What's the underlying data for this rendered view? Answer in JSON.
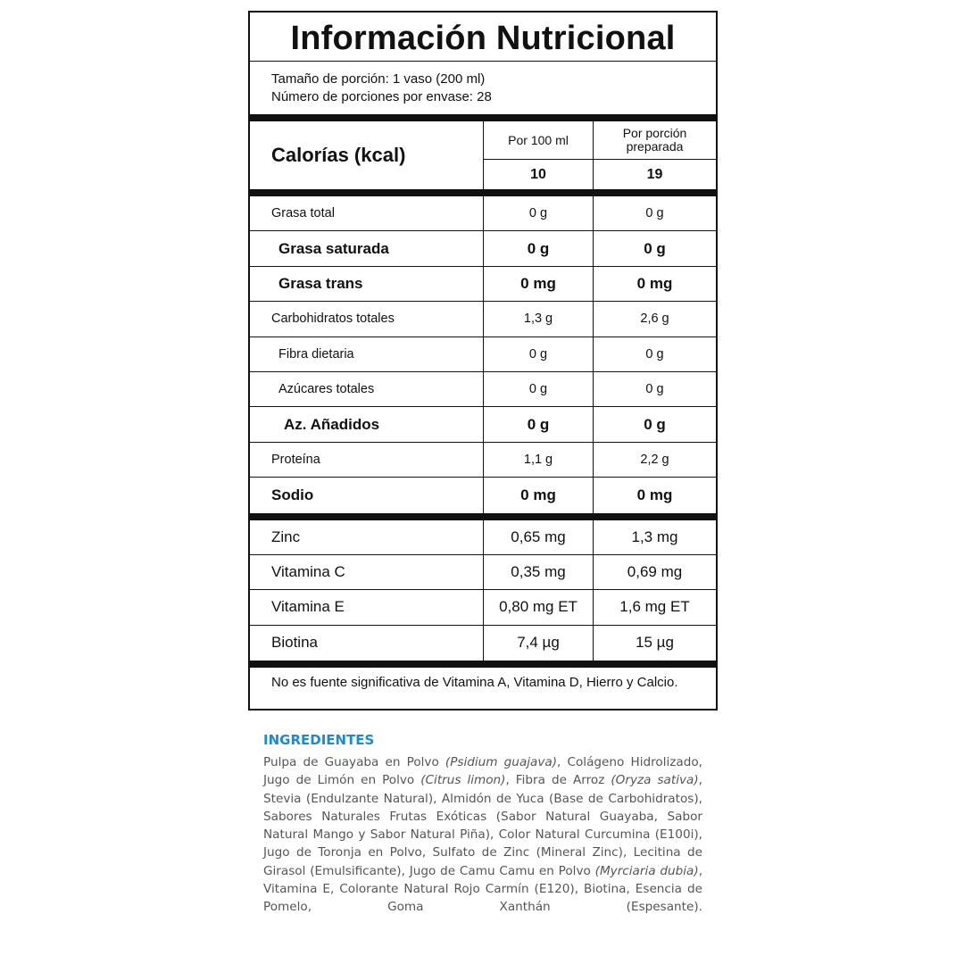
{
  "label": {
    "title": "Información Nutricional",
    "serving_size": "Tamaño de porción: 1 vaso (200 ml)",
    "servings_per_container": "Número de porciones por envase: 28",
    "calories_label": "Calorías (kcal)",
    "col1_header": "Por 100 ml",
    "col2_header": "Por porción preparada",
    "calories_col1": "10",
    "calories_col2": "19",
    "nutrients": [
      {
        "name": "Grasa total",
        "per100": "0 g",
        "perServing": "0 g",
        "bold": false,
        "indent": 0
      },
      {
        "name": "Grasa saturada",
        "per100": "0 g",
        "perServing": "0 g",
        "bold": true,
        "indent": 1
      },
      {
        "name": "Grasa trans",
        "per100": "0 mg",
        "perServing": "0 mg",
        "bold": true,
        "indent": 1
      },
      {
        "name": "Carbohidratos totales",
        "per100": "1,3 g",
        "perServing": "2,6 g",
        "bold": false,
        "indent": 0
      },
      {
        "name": "Fibra dietaria",
        "per100": "0 g",
        "perServing": "0 g",
        "bold": false,
        "indent": 1
      },
      {
        "name": "Azúcares totales",
        "per100": "0 g",
        "perServing": "0 g",
        "bold": false,
        "indent": 1
      },
      {
        "name": "Az. Añadidos",
        "per100": "0 g",
        "perServing": "0 g",
        "bold": true,
        "indent": 2
      },
      {
        "name": "Proteína",
        "per100": "1,1 g",
        "perServing": "2,2 g",
        "bold": false,
        "indent": 0
      },
      {
        "name": "Sodio",
        "per100": "0 mg",
        "perServing": "0 mg",
        "bold": true,
        "indent": 0
      }
    ],
    "vitamins": [
      {
        "name": "Zinc",
        "per100": "0,65 mg",
        "perServing": "1,3 mg"
      },
      {
        "name": "Vitamina C",
        "per100": "0,35 mg",
        "perServing": "0,69 mg"
      },
      {
        "name": "Vitamina E",
        "per100": "0,80 mg ET",
        "perServing": "1,6 mg ET"
      },
      {
        "name": "Biotina",
        "per100": "7,4 µg",
        "perServing": "15 µg"
      }
    ],
    "footnote": "No es fuente significativa de Vitamina A, Vitamina D, Hierro y Calcio."
  },
  "ingredients": {
    "heading": "INGREDIENTES",
    "heading_color": "#1a8ad4",
    "segments": [
      {
        "text": "Pulpa de Guayaba en Polvo ",
        "italic": false
      },
      {
        "text": "(Psidium guajava)",
        "italic": true
      },
      {
        "text": ", Colágeno Hidrolizado, Jugo de Limón en Polvo ",
        "italic": false
      },
      {
        "text": "(Citrus limon)",
        "italic": true
      },
      {
        "text": ", Fibra de Arroz ",
        "italic": false
      },
      {
        "text": "(Oryza sativa)",
        "italic": true
      },
      {
        "text": ", Stevia (Endulzante Natural), Almidón de Yuca (Base de Carbohidratos), Sabores Naturales Frutas Exóticas (Sabor Natural Guayaba, Sabor Natural Mango y Sabor Natural Piña), Color Natural Curcumina (E100i), Jugo de Toronja en Polvo, Sulfato de Zinc (Mineral Zinc), Lecitina de Girasol (Emulsificante), Jugo de Camu Camu en Polvo ",
        "italic": false
      },
      {
        "text": "(Myrciaria dubia)",
        "italic": true
      },
      {
        "text": ", Vitamina E, Colorante Natural Rojo Carmín (E120), Biotina, Esencia de Pomelo, Goma Xanthán (Espesante).",
        "italic": false
      }
    ]
  }
}
